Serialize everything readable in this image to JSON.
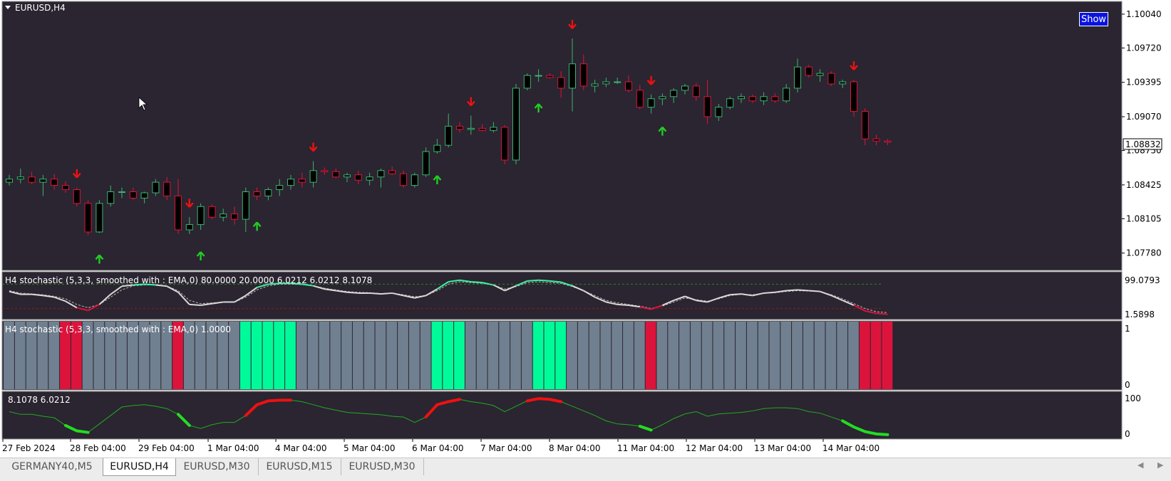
{
  "window": {
    "title": "EURUSD,H4"
  },
  "show_button": {
    "label": "Show"
  },
  "main_axis": {
    "labels": [
      "1.10040",
      "1.09720",
      "1.09395",
      "1.09070",
      "1.08750",
      "1.08425",
      "1.08105",
      "1.07780"
    ],
    "current_price": "1.08832"
  },
  "indicators": [
    {
      "title": "H4 stochastic (5,3,3, smoothed with : EMA,0) 80.0000 20.0000 6.0212 6.0212 8.1078",
      "axis_top": "99.0793",
      "axis_bottom": "1.5898"
    },
    {
      "title": "H4 stochastic (5,3,3, smoothed with : EMA,0) 1.0000",
      "axis_top": "1",
      "axis_bottom": "0"
    },
    {
      "title": "8.1078 6.0212",
      "axis_top": "100",
      "axis_bottom": "0"
    }
  ],
  "time_axis": [
    "27 Feb 2024",
    "28 Feb 04:00",
    "29 Feb 04:00",
    "1 Mar 04:00",
    "4 Mar 04:00",
    "5 Mar 04:00",
    "6 Mar 04:00",
    "7 Mar 04:00",
    "8 Mar 04:00",
    "11 Mar 04:00",
    "12 Mar 04:00",
    "13 Mar 04:00",
    "14 Mar 04:00"
  ],
  "tabs": [
    {
      "label": "GERMANY40,M5",
      "active": false
    },
    {
      "label": "EURUSD,H4",
      "active": true
    },
    {
      "label": "EURUSD,M30",
      "active": false
    },
    {
      "label": "EURUSD,M15",
      "active": false
    },
    {
      "label": "EURUSD,M30",
      "active": false
    }
  ],
  "colors": {
    "background": "#2a2530",
    "bull_candle": "#000000",
    "bear_candle": "#000000",
    "bull_wick": "#3cb371",
    "bear_wick": "#dc143c",
    "arrow_up": "#22cc22",
    "arrow_down": "#ee1111",
    "histogram_neutral": "#708090",
    "histogram_up": "#00fa9a",
    "histogram_down": "#dc143c",
    "stoch_main": "#d8d8d8",
    "stoch_up": "#3cf0a0",
    "stoch_down": "#dc143c",
    "line_green": "#22aa22",
    "line_up_segment": "#ee1111",
    "line_down_segment": "#22dd22"
  },
  "chart_data": {
    "type": "candlestick",
    "symbol": "EURUSD",
    "timeframe": "H4",
    "y_range": [
      1.0765,
      1.1012
    ],
    "candles": [
      [
        1.0845,
        1.0852,
        1.0842,
        1.0848
      ],
      [
        1.0848,
        1.0858,
        1.0844,
        1.085
      ],
      [
        1.085,
        1.0855,
        1.0843,
        1.0845
      ],
      [
        1.0845,
        1.0852,
        1.0832,
        1.0848
      ],
      [
        1.0848,
        1.0853,
        1.0838,
        1.0842
      ],
      [
        1.0842,
        1.0846,
        1.0835,
        1.0838
      ],
      [
        1.0838,
        1.084,
        1.0822,
        1.0825
      ],
      [
        1.0825,
        1.0828,
        1.0795,
        1.0798
      ],
      [
        1.0798,
        1.0828,
        1.0797,
        1.0825
      ],
      [
        1.0825,
        1.0842,
        1.0822,
        1.0836
      ],
      [
        1.0836,
        1.084,
        1.083,
        1.0836
      ],
      [
        1.0836,
        1.084,
        1.0828,
        1.083
      ],
      [
        1.083,
        1.0836,
        1.0825,
        1.0835
      ],
      [
        1.0835,
        1.0848,
        1.0832,
        1.0845
      ],
      [
        1.0845,
        1.085,
        1.0828,
        1.0832
      ],
      [
        1.0832,
        1.0848,
        1.0796,
        1.08
      ],
      [
        1.08,
        1.0812,
        1.0796,
        1.0805
      ],
      [
        1.0805,
        1.0825,
        1.08,
        1.0822
      ],
      [
        1.0822,
        1.0824,
        1.081,
        1.0812
      ],
      [
        1.0812,
        1.082,
        1.0808,
        1.0815
      ],
      [
        1.0815,
        1.0822,
        1.0805,
        1.081
      ],
      [
        1.081,
        1.084,
        1.0798,
        1.0836
      ],
      [
        1.0836,
        1.084,
        1.0828,
        1.0832
      ],
      [
        1.0832,
        1.084,
        1.0828,
        1.0838
      ],
      [
        1.0838,
        1.0848,
        1.0832,
        1.0842
      ],
      [
        1.0842,
        1.0852,
        1.0838,
        1.0848
      ],
      [
        1.0848,
        1.0854,
        1.084,
        1.0845
      ],
      [
        1.0845,
        1.0865,
        1.084,
        1.0856
      ],
      [
        1.0856,
        1.0859,
        1.0852,
        1.0855
      ],
      [
        1.0855,
        1.0858,
        1.0849,
        1.085
      ],
      [
        1.085,
        1.0854,
        1.0845,
        1.0852
      ],
      [
        1.0852,
        1.0856,
        1.0843,
        1.0847
      ],
      [
        1.0847,
        1.0854,
        1.0842,
        1.085
      ],
      [
        1.085,
        1.0858,
        1.084,
        1.0856
      ],
      [
        1.0856,
        1.086,
        1.0852,
        1.0853
      ],
      [
        1.0853,
        1.0856,
        1.084,
        1.0842
      ],
      [
        1.0842,
        1.0854,
        1.084,
        1.0852
      ],
      [
        1.0852,
        1.0878,
        1.085,
        1.0874
      ],
      [
        1.0874,
        1.0886,
        1.0872,
        1.088
      ],
      [
        1.088,
        1.091,
        1.0878,
        1.0898
      ],
      [
        1.0898,
        1.0902,
        1.0892,
        1.0895
      ],
      [
        1.0895,
        1.0908,
        1.089,
        1.0896
      ],
      [
        1.0896,
        1.09,
        1.0893,
        1.0894
      ],
      [
        1.0894,
        1.0902,
        1.0892,
        1.0897
      ],
      [
        1.0897,
        1.0899,
        1.0862,
        1.0866
      ],
      [
        1.0866,
        1.0938,
        1.0862,
        1.0934
      ],
      [
        1.0934,
        1.0948,
        1.0932,
        1.0946
      ],
      [
        1.0946,
        1.0952,
        1.094,
        1.0946
      ],
      [
        1.0946,
        1.0948,
        1.0943,
        1.0944
      ],
      [
        1.0944,
        1.095,
        1.0925,
        1.0934
      ],
      [
        1.0934,
        1.0981,
        1.0912,
        1.0957
      ],
      [
        1.0957,
        1.0966,
        1.0932,
        1.0936
      ],
      [
        1.0936,
        1.0942,
        1.093,
        1.0938
      ],
      [
        1.0938,
        1.0944,
        1.0935,
        1.094
      ],
      [
        1.094,
        1.0944,
        1.0938,
        1.094
      ],
      [
        1.094,
        1.0946,
        1.093,
        1.0932
      ],
      [
        1.0932,
        1.0937,
        1.0914,
        1.0916
      ],
      [
        1.0916,
        1.0928,
        1.091,
        1.0924
      ],
      [
        1.0924,
        1.0929,
        1.0918,
        1.0926
      ],
      [
        1.0926,
        1.0934,
        1.092,
        1.0932
      ],
      [
        1.0932,
        1.0938,
        1.0928,
        1.0936
      ],
      [
        1.0936,
        1.0939,
        1.0922,
        1.0926
      ],
      [
        1.0926,
        1.0942,
        1.09,
        1.0907
      ],
      [
        1.0907,
        1.0919,
        1.0903,
        1.0916
      ],
      [
        1.0916,
        1.0926,
        1.0914,
        1.0924
      ],
      [
        1.0924,
        1.0929,
        1.092,
        1.0926
      ],
      [
        1.0926,
        1.0928,
        1.092,
        1.0922
      ],
      [
        1.0922,
        1.093,
        1.0918,
        1.0926
      ],
      [
        1.0926,
        1.0929,
        1.092,
        1.0922
      ],
      [
        1.0922,
        1.0938,
        1.092,
        1.0934
      ],
      [
        1.0934,
        1.0962,
        1.093,
        1.0954
      ],
      [
        1.0954,
        1.0956,
        1.0944,
        1.0946
      ],
      [
        1.0946,
        1.0952,
        1.094,
        1.0948
      ],
      [
        1.0948,
        1.095,
        1.0936,
        1.0938
      ],
      [
        1.0938,
        1.0942,
        1.0934,
        1.094
      ],
      [
        1.094,
        1.0942,
        1.0907,
        1.0912
      ],
      [
        1.0912,
        1.0915,
        1.088,
        1.0886
      ],
      [
        1.0886,
        1.089,
        1.088,
        1.0884
      ],
      [
        1.0884,
        1.0886,
        1.088,
        1.0883
      ]
    ],
    "stochastic": {
      "levels": [
        80,
        20
      ],
      "main": [
        62,
        55,
        55,
        52,
        48,
        38,
        22,
        15,
        30,
        55,
        75,
        78,
        80,
        78,
        75,
        60,
        30,
        28,
        32,
        36,
        36,
        52,
        72,
        80,
        82,
        82,
        80,
        76,
        68,
        64,
        60,
        58,
        58,
        56,
        58,
        52,
        46,
        52,
        68,
        86,
        90,
        86,
        84,
        78,
        64,
        76,
        88,
        90,
        88,
        85,
        76,
        64,
        48,
        36,
        30,
        28,
        24,
        18,
        28,
        40,
        50,
        40,
        36,
        46,
        54,
        56,
        52,
        58,
        60,
        64,
        66,
        64,
        62,
        52,
        40,
        28,
        14,
        8,
        6
      ],
      "signal": [
        64,
        58,
        56,
        54,
        50,
        44,
        30,
        22,
        30,
        48,
        66,
        76,
        78,
        78,
        75,
        64,
        40,
        32,
        34,
        36,
        36,
        48,
        66,
        76,
        80,
        80,
        79,
        76,
        70,
        66,
        62,
        60,
        59,
        57,
        58,
        54,
        49,
        52,
        64,
        80,
        86,
        84,
        82,
        78,
        68,
        74,
        84,
        86,
        84,
        82,
        74,
        64,
        52,
        40,
        34,
        30,
        26,
        20,
        26,
        36,
        46,
        42,
        38,
        44,
        52,
        55,
        54,
        57,
        59,
        62,
        64,
        63,
        62,
        54,
        44,
        32,
        20,
        12,
        10
      ]
    },
    "histogram": {
      "states": [
        "n",
        "n",
        "n",
        "n",
        "n",
        "d",
        "d",
        "n",
        "n",
        "n",
        "n",
        "n",
        "n",
        "n",
        "n",
        "d",
        "n",
        "n",
        "n",
        "n",
        "n",
        "u",
        "u",
        "u",
        "u",
        "u",
        "n",
        "n",
        "n",
        "n",
        "n",
        "n",
        "n",
        "n",
        "n",
        "n",
        "n",
        "n",
        "u",
        "u",
        "u",
        "n",
        "n",
        "n",
        "n",
        "n",
        "n",
        "u",
        "u",
        "u",
        "n",
        "n",
        "n",
        "n",
        "n",
        "n",
        "n",
        "d",
        "n",
        "n",
        "n",
        "n",
        "n",
        "n",
        "n",
        "n",
        "n",
        "n",
        "n",
        "n",
        "n",
        "n",
        "n",
        "n",
        "n",
        "n",
        "d",
        "d",
        "d"
      ]
    },
    "oscillator": {
      "values": [
        62,
        55,
        55,
        50,
        46,
        26,
        12,
        8,
        30,
        52,
        74,
        78,
        80,
        76,
        70,
        55,
        26,
        18,
        28,
        34,
        34,
        52,
        80,
        90,
        92,
        92,
        88,
        80,
        72,
        66,
        60,
        58,
        56,
        54,
        50,
        48,
        34,
        48,
        80,
        88,
        94,
        88,
        84,
        78,
        62,
        76,
        90,
        96,
        94,
        88,
        76,
        64,
        52,
        38,
        30,
        28,
        24,
        14,
        28,
        44,
        56,
        62,
        50,
        56,
        58,
        60,
        64,
        70,
        72,
        72,
        70,
        62,
        58,
        48,
        38,
        22,
        10,
        4,
        2
      ],
      "up_segments": [
        [
          21,
          25
        ],
        [
          37,
          40
        ],
        [
          46,
          49
        ]
      ],
      "down_segments": [
        [
          5,
          7
        ],
        [
          15,
          16
        ],
        [
          56,
          57
        ],
        [
          74,
          78
        ]
      ]
    },
    "signals": [
      {
        "index": 6,
        "dir": "down"
      },
      {
        "index": 8,
        "dir": "up"
      },
      {
        "index": 16,
        "dir": "down"
      },
      {
        "index": 17,
        "dir": "up"
      },
      {
        "index": 22,
        "dir": "up"
      },
      {
        "index": 27,
        "dir": "down"
      },
      {
        "index": 38,
        "dir": "up"
      },
      {
        "index": 41,
        "dir": "down"
      },
      {
        "index": 47,
        "dir": "up"
      },
      {
        "index": 50,
        "dir": "down"
      },
      {
        "index": 57,
        "dir": "down"
      },
      {
        "index": 58,
        "dir": "up"
      },
      {
        "index": 75,
        "dir": "down"
      }
    ]
  }
}
